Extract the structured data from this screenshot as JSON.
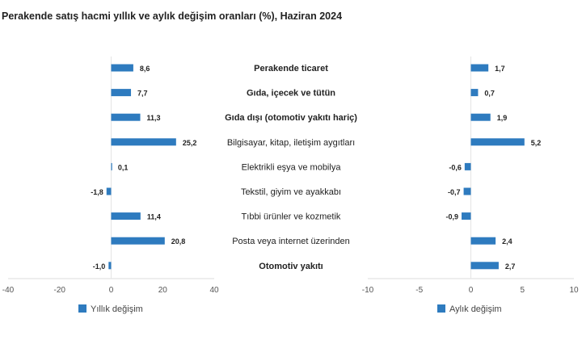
{
  "title": "Perakende satış hacmi yıllık ve aylık değişim oranları (%), Haziran 2024",
  "chart_data": {
    "type": "bar",
    "orientation": "horizontal",
    "title": "Perakende satış hacmi yıllık ve aylık değişim oranları (%), Haziran 2024",
    "categories": [
      "Perakende ticaret",
      "Gıda, içecek ve tütün",
      "Gıda dışı (otomotiv yakıtı hariç)",
      "Bilgisayar, kitap, iletişim aygıtları",
      "Elektrikli eşya ve mobilya",
      "Tekstil, giyim ve ayakkabı",
      "Tıbbi ürünler ve kozmetik",
      "Posta veya internet üzerinden",
      "Otomotiv yakıtı"
    ],
    "bold_categories": [
      0,
      1,
      2,
      8
    ],
    "series": [
      {
        "name": "Yıllık değişim",
        "values": [
          8.6,
          7.7,
          11.3,
          25.2,
          0.1,
          -1.8,
          11.4,
          20.8,
          -1.0
        ],
        "labels": [
          "8,6",
          "7,7",
          "11,3",
          "25,2",
          "0,1",
          "-1,8",
          "11,4",
          "20,8",
          "-1,0"
        ],
        "xlim": [
          -40,
          40
        ],
        "ticks": [
          "-40",
          "-20",
          "0",
          "20",
          "40"
        ],
        "tick_values": [
          -40,
          -20,
          0,
          20,
          40
        ]
      },
      {
        "name": "Aylık değişim",
        "values": [
          1.7,
          0.7,
          1.9,
          5.2,
          -0.6,
          -0.7,
          -0.9,
          2.4,
          2.7
        ],
        "labels": [
          "1,7",
          "0,7",
          "1,9",
          "5,2",
          "-0,6",
          "-0,7",
          "-0,9",
          "2,4",
          "2,7"
        ],
        "xlim": [
          -10,
          10
        ],
        "ticks": [
          "-10",
          "-5",
          "0",
          "5",
          "10"
        ],
        "tick_values": [
          -10,
          -5,
          0,
          5,
          10
        ]
      }
    ],
    "color": "#2e7bbf",
    "legend": "bottom"
  }
}
